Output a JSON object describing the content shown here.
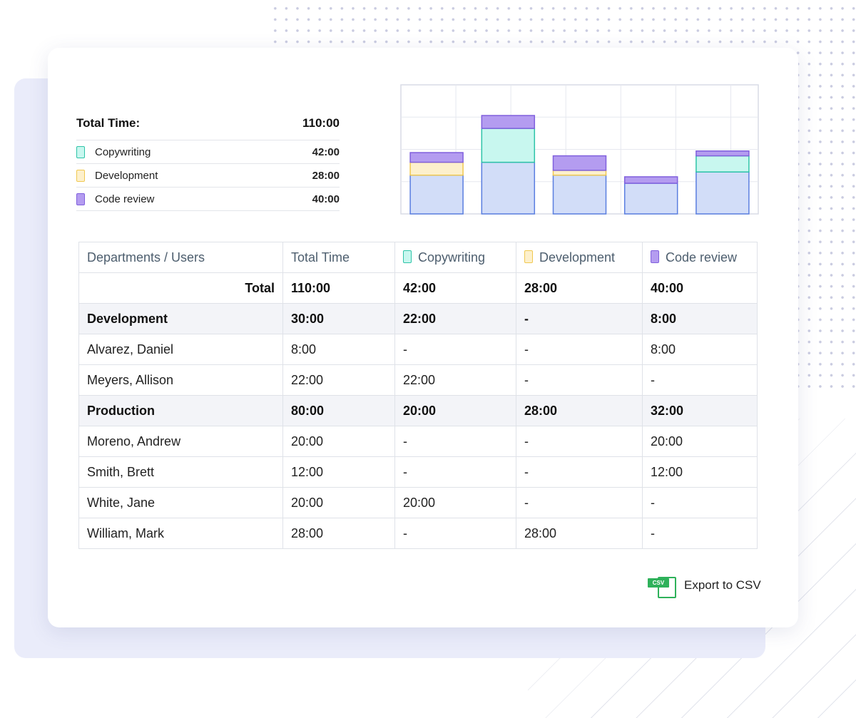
{
  "colors": {
    "copywriting": {
      "fill": "#c8f7ef",
      "stroke": "#2ec4a8"
    },
    "development": {
      "fill": "#fdf0cc",
      "stroke": "#f0c850"
    },
    "code_review": {
      "fill": "#b49cf0",
      "stroke": "#8060dd"
    },
    "base": {
      "fill": "#d2ddf8",
      "stroke": "#5a7ee0"
    }
  },
  "summary": {
    "total_label": "Total Time:",
    "total_value": "110:00",
    "items": [
      {
        "label": "Copywriting",
        "value": "42:00",
        "icon": "copywriting-swatch-icon"
      },
      {
        "label": "Development",
        "value": "28:00",
        "icon": "development-swatch-icon"
      },
      {
        "label": "Code review",
        "value": "40:00",
        "icon": "code-review-swatch-icon"
      }
    ]
  },
  "chart_data": {
    "type": "bar",
    "stacked": true,
    "grid": true,
    "ylim": [
      0,
      40
    ],
    "categories": [
      "",
      "",
      "",
      "",
      ""
    ],
    "series": [
      {
        "key": "base",
        "values": [
          12,
          16,
          12,
          9.5,
          13
        ]
      },
      {
        "key": "development",
        "values": [
          4,
          0,
          1.5,
          0,
          0
        ]
      },
      {
        "key": "copywriting",
        "values": [
          0,
          10.5,
          0,
          0,
          5
        ]
      },
      {
        "key": "code_review",
        "values": [
          3,
          4,
          4.5,
          2,
          1.5
        ]
      }
    ]
  },
  "table": {
    "headers": {
      "departments": "Departments / Users",
      "total": "Total Time",
      "copywriting": "Copywriting",
      "development": "Development",
      "code_review": "Code review"
    },
    "total_row": {
      "label": "Total",
      "total": "110:00",
      "copywriting": "42:00",
      "development": "28:00",
      "code_review": "40:00"
    },
    "rows": [
      {
        "type": "dept",
        "name": "Development",
        "total": "30:00",
        "copywriting": "22:00",
        "development": "-",
        "code_review": "8:00"
      },
      {
        "type": "user",
        "name": "Alvarez, Daniel",
        "total": "8:00",
        "copywriting": "-",
        "development": "-",
        "code_review": "8:00"
      },
      {
        "type": "user",
        "name": "Meyers, Allison",
        "total": "22:00",
        "copywriting": "22:00",
        "development": "-",
        "code_review": "-"
      },
      {
        "type": "dept",
        "name": "Production",
        "total": "80:00",
        "copywriting": "20:00",
        "development": "28:00",
        "code_review": "32:00"
      },
      {
        "type": "user",
        "name": "Moreno, Andrew",
        "total": "20:00",
        "copywriting": "-",
        "development": "-",
        "code_review": "20:00"
      },
      {
        "type": "user",
        "name": "Smith, Brett",
        "total": "12:00",
        "copywriting": "-",
        "development": "-",
        "code_review": "12:00"
      },
      {
        "type": "user",
        "name": "White, Jane",
        "total": "20:00",
        "copywriting": "20:00",
        "development": "-",
        "code_review": "-"
      },
      {
        "type": "user",
        "name": "William, Mark",
        "total": "28:00",
        "copywriting": "-",
        "development": "28:00",
        "code_review": "-"
      }
    ]
  },
  "export": {
    "icon_text": "CSV",
    "label": "Export to CSV"
  }
}
